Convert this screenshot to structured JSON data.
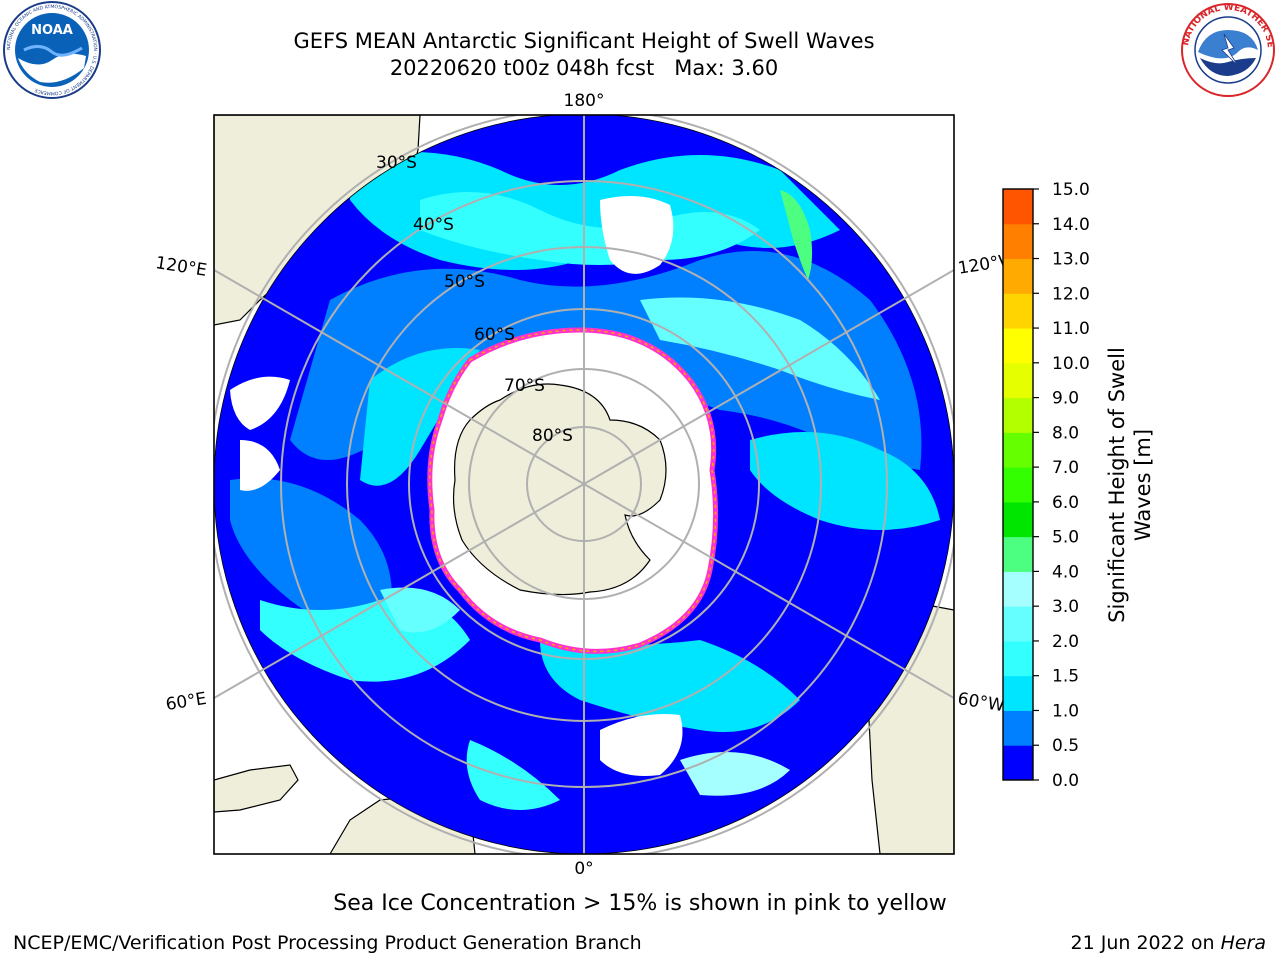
{
  "header": {
    "title": "GEFS MEAN Antarctic Significant Height of Swell Waves",
    "subtitle": "20220620 t00z 048h fcst",
    "max_label": "Max: 3.60"
  },
  "logos": {
    "left": "NOAA",
    "left_ring": "NATIONAL OCEANIC AND ATMOSPHERIC ADMINISTRATION · U.S. DEPARTMENT OF COMMERCE",
    "right_ring": "NATIONAL WEATHER SERVICE"
  },
  "map": {
    "projection": "south-polar-stereographic",
    "meridian_labels": [
      "180°",
      "120°E",
      "120°W",
      "60°E",
      "60°W",
      "0°"
    ],
    "latitude_labels": [
      "30°S",
      "40°S",
      "50°S",
      "60°S",
      "70°S",
      "80°S"
    ],
    "colors": {
      "ocean_low": "#0000ff",
      "ocean_mid": "#0080ff",
      "ocean_high": "#00ffff",
      "land": "#efeedb",
      "ice": "#ffffff",
      "ice_edge": "#ff33cc",
      "grid": "#b0b0b0"
    }
  },
  "colorbar": {
    "label_line1": "Significant Height of Swell",
    "label_line2": "Waves [m]",
    "ticks": [
      "0.0",
      "0.5",
      "1.0",
      "1.5",
      "2.0",
      "3.0",
      "4.0",
      "5.0",
      "6.0",
      "7.0",
      "8.0",
      "9.0",
      "10.0",
      "11.0",
      "12.0",
      "13.0",
      "14.0",
      "15.0"
    ],
    "colors": [
      "#0000ff",
      "#0080ff",
      "#00e5ff",
      "#33ffff",
      "#66ffff",
      "#a6ffff",
      "#4dff80",
      "#00e600",
      "#33ff00",
      "#66ff00",
      "#b3ff00",
      "#e6ff00",
      "#ffff00",
      "#ffd400",
      "#ffaa00",
      "#ff8000",
      "#ff5500",
      "#ff2a00",
      "#ff0000"
    ]
  },
  "footer": {
    "note": "Sea Ice Concentration > 15% is shown in pink to yellow",
    "credit": "NCEP/EMC/Verification Post Processing Product Generation Branch",
    "date": "21 Jun 2022 on ",
    "machine": "Hera"
  }
}
